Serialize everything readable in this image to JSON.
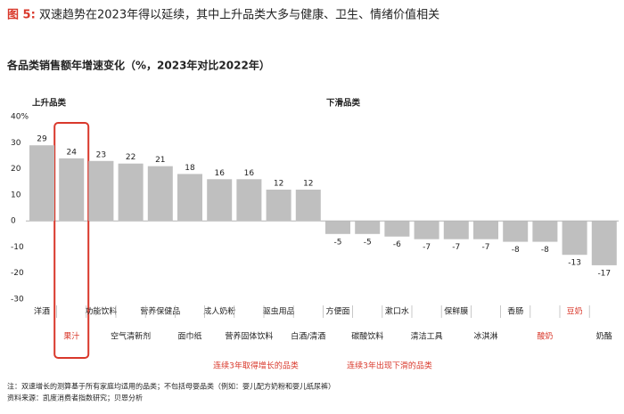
{
  "chart_data": {
    "type": "bar",
    "figure_label": "图 5:",
    "title": "双速趋势在2023年得以延续，其中上升品类大多与健康、卫生、情绪价值相关",
    "subtitle": "各品类销售额年增速变化（%，2023年对比2022年）",
    "group_labels": [
      "上升品类",
      "下滑品类"
    ],
    "categories": [
      "洋酒",
      "果汁",
      "功能饮料",
      "空气清新剂",
      "营养保健品",
      "面巾纸",
      "成人奶粉",
      "营养固体饮料",
      "驱虫用品",
      "白酒/清酒",
      "方便面",
      "碳酸饮料",
      "漱口水",
      "清洁工具",
      "保鲜膜",
      "冰淇淋",
      "香肠",
      "酸奶",
      "豆奶",
      "奶酪"
    ],
    "values": [
      29,
      24,
      23,
      22,
      21,
      18,
      16,
      16,
      12,
      12,
      -5,
      -5,
      -6,
      -7,
      -7,
      -7,
      -8,
      -8,
      -13,
      -17
    ],
    "color": "#bfbfbf",
    "ylim": [
      -30,
      40
    ],
    "yticks": [
      {
        "value": 40,
        "label": "40%"
      },
      30,
      20,
      10,
      0,
      -10,
      -20,
      -30
    ],
    "highlight_color": "#d9382b",
    "highlighted_labels": [
      17,
      18
    ],
    "highlight_box": 1,
    "annotations": [
      "连续3年取得增长的品类",
      "连续3年出现下滑的品类"
    ],
    "notes": [
      "注：双速增长的测算基于所有家庭均适用的品类；不包括母婴品类（例如：婴儿配方奶粉和婴儿纸尿裤）",
      "资料来源：凯度消费者指数研究；贝恩分析"
    ]
  }
}
